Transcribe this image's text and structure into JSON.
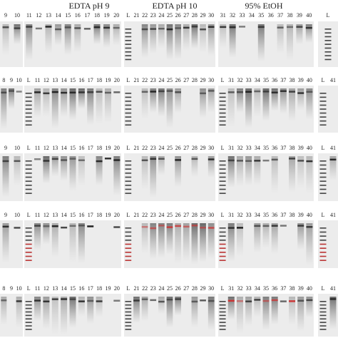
{
  "headers": [
    "EDTA pH 9",
    "EDTA pH 10",
    "95% EtOH"
  ],
  "rows": [
    {
      "panels": [
        [
          "9",
          "10"
        ],
        [
          "11",
          "12",
          "13",
          "14",
          "15",
          "16",
          "17",
          "18",
          "19",
          "20"
        ],
        [
          "L",
          "21",
          "22",
          "23",
          "24",
          "25",
          "26",
          "27",
          "28",
          "29",
          "30"
        ],
        [
          "31",
          "32",
          "33",
          "34",
          "35",
          "36",
          "37",
          "38",
          "39",
          "40"
        ],
        [
          "L"
        ]
      ]
    },
    {
      "panels": [
        [
          "8",
          "9",
          "10"
        ],
        [
          "L",
          "11",
          "12",
          "13",
          "14",
          "15",
          "16",
          "17",
          "18",
          "19",
          "20"
        ],
        [
          "L",
          "21",
          "22",
          "23",
          "24",
          "25",
          "26",
          "27",
          "28",
          "29",
          "30"
        ],
        [
          "L",
          "31",
          "32",
          "33",
          "34",
          "35",
          "36",
          "37",
          "38",
          "39",
          "40"
        ],
        [
          "L",
          "41"
        ]
      ]
    },
    {
      "panels": [
        [
          "9",
          "10"
        ],
        [
          "L",
          "11",
          "12",
          "13",
          "14",
          "15",
          "16",
          "17",
          "18",
          "19",
          "20"
        ],
        [
          "L",
          "21",
          "22",
          "23",
          "24",
          "25",
          "26",
          "27",
          "28",
          "29",
          "30"
        ],
        [
          "L",
          "31",
          "32",
          "33",
          "34",
          "35",
          "36",
          "37",
          "38",
          "39",
          "40"
        ],
        [
          "L",
          "41"
        ]
      ]
    },
    {
      "panels": [
        [
          "9",
          "10"
        ],
        [
          "L",
          "11",
          "12",
          "13",
          "14",
          "15",
          "16",
          "17",
          "18",
          "19",
          "20"
        ],
        [
          "L",
          "21",
          "22",
          "23",
          "24",
          "25",
          "26",
          "27",
          "28",
          "29",
          "30"
        ],
        [
          "L",
          "31",
          "32",
          "33",
          "34",
          "35",
          "36",
          "37",
          "38",
          "39",
          "40"
        ],
        [
          "L",
          "41"
        ]
      ]
    },
    {
      "panels": [
        [
          "8",
          "9",
          "10"
        ],
        [
          "L",
          "11",
          "12",
          "13",
          "14",
          "15",
          "16",
          "17",
          "18",
          "19",
          "20"
        ],
        [
          "L",
          "21",
          "22",
          "23",
          "24",
          "25",
          "26",
          "27",
          "28",
          "29",
          "30"
        ],
        [
          "L",
          "31",
          "32",
          "33",
          "34",
          "35",
          "36",
          "37",
          "38",
          "39",
          "40"
        ],
        [
          "L",
          "41"
        ]
      ]
    }
  ]
}
